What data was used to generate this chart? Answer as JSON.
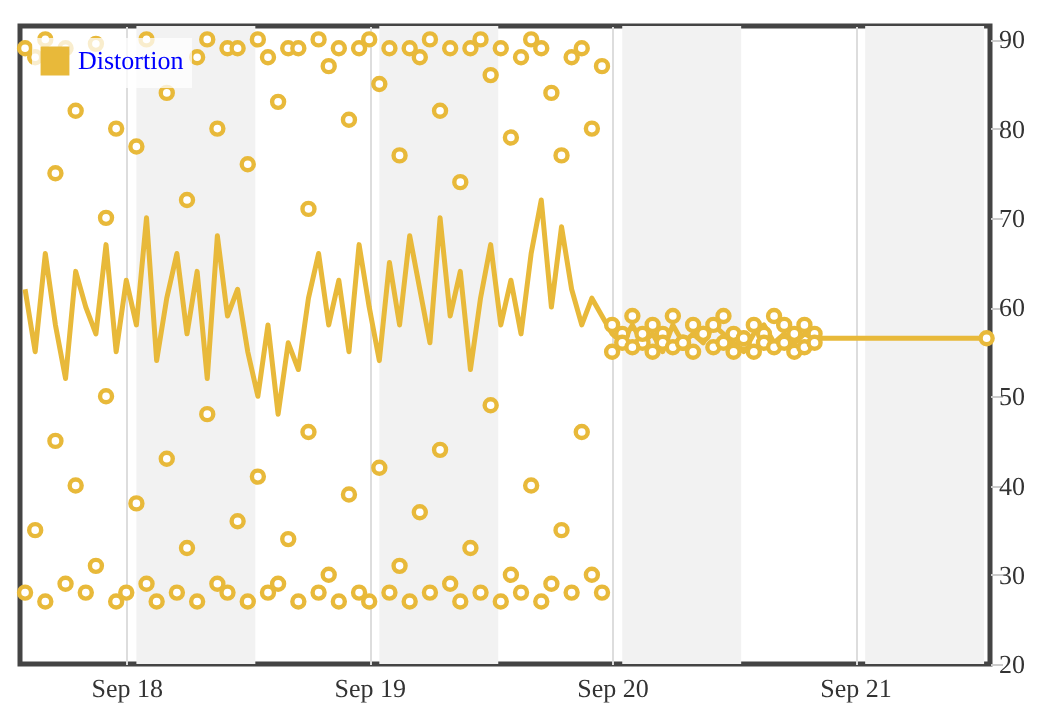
{
  "chart_data": {
    "type": "line",
    "x": [
      "--09-17T14:00",
      "--09-17T15:00",
      "--09-17T16:00",
      "--09-17T17:00",
      "--09-17T18:00",
      "--09-17T19:00",
      "--09-17T20:00",
      "--09-17T21:00",
      "--09-17T22:00",
      "--09-17T23:00",
      "--09-18T00:00",
      "--09-18T01:00",
      "--09-18T02:00",
      "--09-18T03:00",
      "--09-18T04:00",
      "--09-18T05:00",
      "--09-18T06:00",
      "--09-18T07:00",
      "--09-18T08:00",
      "--09-18T09:00",
      "--09-18T10:00",
      "--09-18T11:00",
      "--09-18T12:00",
      "--09-18T13:00",
      "--09-18T14:00",
      "--09-18T15:00",
      "--09-18T16:00",
      "--09-18T17:00",
      "--09-18T18:00",
      "--09-18T19:00",
      "--09-18T20:00",
      "--09-18T21:00",
      "--09-18T22:00",
      "--09-18T23:00",
      "--09-19T00:00",
      "--09-19T01:00",
      "--09-19T02:00",
      "--09-19T03:00",
      "--09-19T04:00",
      "--09-19T05:00",
      "--09-19T06:00",
      "--09-19T07:00",
      "--09-19T08:00",
      "--09-19T09:00",
      "--09-19T10:00",
      "--09-19T11:00",
      "--09-19T12:00",
      "--09-19T13:00",
      "--09-19T14:00",
      "--09-19T15:00",
      "--09-19T16:00",
      "--09-19T17:00",
      "--09-19T18:00",
      "--09-19T19:00",
      "--09-19T20:00",
      "--09-19T21:00",
      "--09-19T22:00",
      "--09-19T23:00",
      "--09-20T00:00",
      "--09-20T01:00",
      "--09-20T02:00",
      "--09-20T03:00",
      "--09-20T04:00",
      "--09-20T05:00",
      "--09-20T06:00",
      "--09-20T07:00",
      "--09-20T08:00",
      "--09-20T09:00",
      "--09-20T10:00",
      "--09-20T11:00",
      "--09-20T12:00",
      "--09-20T13:00",
      "--09-20T14:00",
      "--09-20T15:00",
      "--09-20T16:00",
      "--09-20T17:00",
      "--09-20T18:00",
      "--09-20T19:00",
      "--09-20T20:00",
      "--09-20T21:00",
      "--09-20T22:00",
      "--09-20T23:00",
      "--09-21T00:00",
      "--09-21T01:00",
      "--09-21T02:00",
      "--09-21T03:00",
      "--09-21T04:00",
      "--09-21T05:00",
      "--09-21T06:00",
      "--09-21T07:00",
      "--09-21T08:00",
      "--09-21T09:00",
      "--09-21T10:00",
      "--09-21T11:00",
      "--09-21T12:00",
      "--09-21T13:00"
    ],
    "series": [
      {
        "name": "Distortion",
        "color": "#e8b93a",
        "values": [
          62,
          55,
          66,
          58,
          52,
          64,
          60,
          57,
          67,
          55,
          63,
          58,
          70,
          54,
          61,
          66,
          57,
          64,
          52,
          68,
          59,
          62,
          55,
          50,
          58,
          48,
          56,
          53,
          61,
          66,
          58,
          63,
          55,
          67,
          60,
          54,
          65,
          58,
          68,
          62,
          56,
          70,
          59,
          64,
          53,
          61,
          67,
          58,
          63,
          57,
          66,
          72,
          60,
          69,
          62,
          58,
          61,
          59,
          57,
          56,
          58,
          56,
          57,
          55,
          58,
          56,
          57,
          56,
          58,
          57,
          56,
          55,
          57,
          58,
          56,
          57,
          56,
          57,
          56.5,
          56.5,
          56.5,
          56.5,
          56.5,
          56.5,
          56.5,
          56.5,
          56.5,
          56.5,
          56.5,
          56.5,
          56.5,
          56.5,
          56.5,
          56.5,
          56.5,
          56.5
        ]
      },
      {
        "type": "scatter",
        "marker": "circle",
        "color": "#e8b93a",
        "values": [
          89,
          88,
          90,
          75,
          89,
          82,
          null,
          89.5,
          70,
          80,
          null,
          78,
          90,
          null,
          84,
          null,
          72,
          88,
          90,
          80,
          89,
          89,
          76,
          90,
          88,
          83,
          89,
          89,
          71,
          90,
          87,
          89,
          81,
          89,
          90,
          85,
          89,
          77,
          89,
          88,
          90,
          82,
          89,
          74,
          89,
          90,
          86,
          89,
          79,
          88,
          90,
          89,
          84,
          77,
          88,
          89,
          80,
          87,
          58,
          57,
          59,
          56,
          58,
          57,
          59,
          56,
          58,
          57,
          58,
          59,
          57,
          56,
          58,
          57,
          59,
          58,
          57,
          58,
          57,
          null,
          null,
          null,
          null,
          null,
          null,
          null,
          null,
          null,
          null,
          null,
          null,
          null,
          null,
          null,
          null,
          56.5
        ]
      },
      {
        "type": "scatter",
        "marker": "circle",
        "color": "#e8b93a",
        "values": [
          28,
          35,
          27,
          45,
          29,
          40,
          28,
          31,
          50,
          27,
          28,
          38,
          29,
          27,
          43,
          28,
          33,
          27,
          48,
          29,
          28,
          36,
          27,
          41,
          28,
          29,
          34,
          27,
          46,
          28,
          30,
          27,
          39,
          28,
          27,
          42,
          28,
          31,
          27,
          37,
          28,
          44,
          29,
          27,
          33,
          28,
          49,
          27,
          30,
          28,
          40,
          27,
          29,
          35,
          28,
          46,
          30,
          28,
          55,
          56,
          55.5,
          57,
          55,
          56,
          55.5,
          56,
          55,
          57,
          55.5,
          56,
          55,
          56.5,
          55,
          56,
          55.5,
          56,
          55,
          55.5,
          56,
          null,
          null,
          null,
          null,
          null,
          null,
          null,
          null,
          null,
          null,
          null,
          null,
          null,
          null,
          null,
          null,
          null
        ]
      }
    ],
    "xlim": [
      "--09-17T13:30",
      "--09-21T13:20"
    ],
    "xticks": [
      {
        "value": "--09-18",
        "label": "Sep 18"
      },
      {
        "value": "--09-19",
        "label": "Sep 19"
      },
      {
        "value": "--09-20",
        "label": "Sep 20"
      },
      {
        "value": "--09-21",
        "label": "Sep 21"
      }
    ],
    "ylim": [
      20,
      91.5
    ],
    "yticks": [
      20,
      30,
      40,
      50,
      60,
      70,
      80,
      90
    ],
    "bands": [
      {
        "axis": "x",
        "from": "--09-18T01:00",
        "to": "--09-18T12:45",
        "color": "#f2f2f2"
      },
      {
        "axis": "x",
        "from": "--09-19T01:00",
        "to": "--09-19T12:45",
        "color": "#f2f2f2"
      },
      {
        "axis": "x",
        "from": "--09-20T01:00",
        "to": "--09-20T12:45",
        "color": "#f2f2f2"
      },
      {
        "axis": "x",
        "from": "--09-21T01:00",
        "to": "--09-21T12:45",
        "color": "#f2f2f2"
      }
    ],
    "grid": "x",
    "legend": "top left"
  }
}
